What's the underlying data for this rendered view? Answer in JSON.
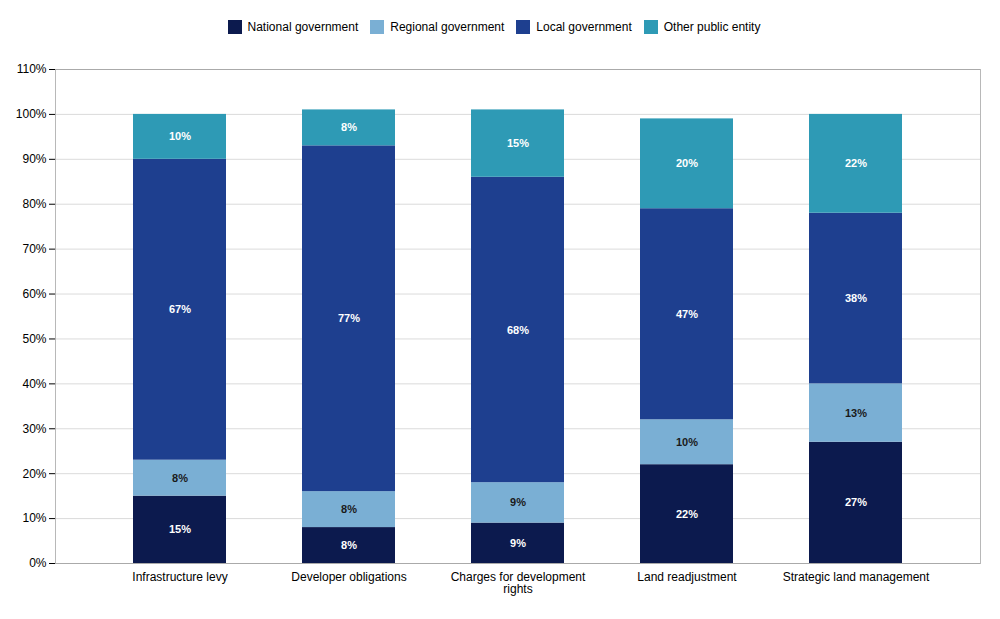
{
  "chart_data": {
    "type": "bar",
    "stacked": true,
    "categories": [
      "Infrastructure levy",
      "Developer obligations",
      "Charges for development\nrights",
      "Land readjustment",
      "Strategic land management"
    ],
    "series": [
      {
        "name": "National government",
        "color": "#0c1a4e",
        "values": [
          15,
          8,
          9,
          22,
          27
        ],
        "value_labels": [
          "15%",
          "8%",
          "9%",
          "22%",
          "27%"
        ]
      },
      {
        "name": "Regional government",
        "color": "#7aafd4",
        "values": [
          8,
          8,
          9,
          10,
          13
        ],
        "value_labels": [
          "8%",
          "8%",
          "9%",
          "10%",
          "13%"
        ]
      },
      {
        "name": "Local government",
        "color": "#1e3f8f",
        "values": [
          67,
          77,
          68,
          47,
          38
        ],
        "value_labels": [
          "67%",
          "77%",
          "68%",
          "47%",
          "38%"
        ]
      },
      {
        "name": "Other public entity",
        "color": "#2e9ab5",
        "values": [
          10,
          8,
          15,
          20,
          22
        ],
        "value_labels": [
          "10%",
          "8%",
          "15%",
          "20%",
          "22%"
        ]
      }
    ],
    "ylim": [
      0,
      110
    ],
    "yticks": [
      {
        "value": 0,
        "label": "0%"
      },
      {
        "value": 10,
        "label": "10%"
      },
      {
        "value": 20,
        "label": "20%"
      },
      {
        "value": 30,
        "label": "30%"
      },
      {
        "value": 40,
        "label": "40%"
      },
      {
        "value": 50,
        "label": "50%"
      },
      {
        "value": 60,
        "label": "60%"
      },
      {
        "value": 70,
        "label": "70%"
      },
      {
        "value": 80,
        "label": "80%"
      },
      {
        "value": 90,
        "label": "90%"
      },
      {
        "value": 100,
        "label": "100%"
      },
      {
        "value": 110,
        "label": "110%"
      }
    ],
    "grid": true,
    "data_labels": true,
    "legend": "top"
  }
}
